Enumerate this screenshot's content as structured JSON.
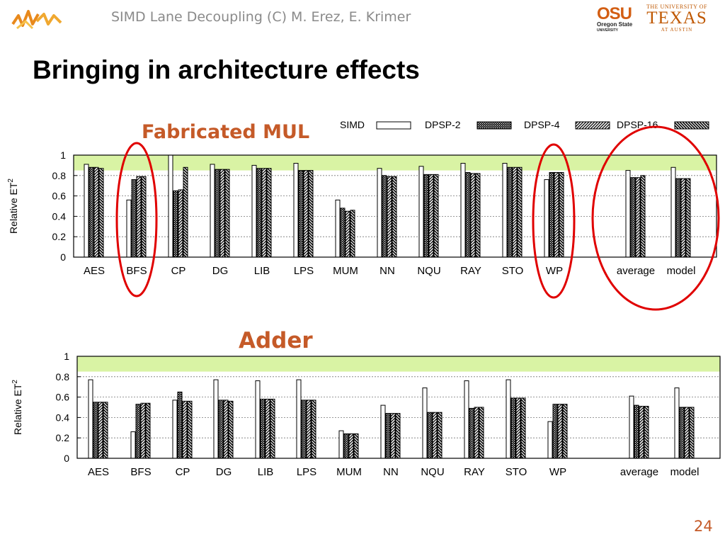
{
  "header": {
    "text": "SIMD Lane Decoupling (C) M. Erez, E. Krimer"
  },
  "logos": {
    "left_icon": "wave-lines-logo",
    "osu": {
      "big": "OSU",
      "small": "Oregon State",
      "tiny": "UNIVERSITY"
    },
    "ut": {
      "line1": "THE UNIVERSITY OF",
      "line2": "TEXAS",
      "line3": "AT AUSTIN"
    }
  },
  "title": "Bringing in architecture effects",
  "labels": {
    "top": "Fabricated MUL",
    "bottom": "Adder"
  },
  "page_number": "24",
  "colors": {
    "accent": "#c55a28",
    "highlight_band": "#d9f3a4",
    "circle": "#e00000"
  },
  "chart_data": [
    {
      "type": "bar",
      "ylabel": "Relative ET",
      "ylabel_sup": "2",
      "ylim": [
        0,
        1
      ],
      "yticks": [
        "0",
        "0.2",
        "0.4",
        "0.6",
        "0.8",
        "1"
      ],
      "highlight_band": [
        0.85,
        1.0
      ],
      "grid": true,
      "legend": "top",
      "categories": [
        "AES",
        "BFS",
        "CP",
        "DG",
        "LIB",
        "LPS",
        "MUM",
        "NN",
        "NQU",
        "RAY",
        "STO",
        "WP",
        "average",
        "model"
      ],
      "series": [
        {
          "name": "SIMD",
          "values": [
            0.91,
            0.56,
            1.0,
            0.91,
            0.9,
            0.92,
            0.56,
            0.87,
            0.89,
            0.92,
            0.92,
            0.76,
            0.85,
            0.88
          ]
        },
        {
          "name": "DPSP-2",
          "values": [
            0.88,
            0.76,
            0.65,
            0.86,
            0.87,
            0.85,
            0.48,
            0.8,
            0.81,
            0.83,
            0.88,
            0.83,
            0.78,
            0.77
          ]
        },
        {
          "name": "DPSP-4",
          "values": [
            0.88,
            0.79,
            0.66,
            0.86,
            0.87,
            0.85,
            0.45,
            0.79,
            0.81,
            0.82,
            0.88,
            0.83,
            0.78,
            0.77
          ]
        },
        {
          "name": "DPSP-16",
          "values": [
            0.87,
            0.79,
            0.88,
            0.86,
            0.87,
            0.85,
            0.46,
            0.79,
            0.81,
            0.82,
            0.88,
            0.83,
            0.8,
            0.77
          ]
        }
      ],
      "circled": [
        "BFS",
        "WP",
        "average",
        "model"
      ]
    },
    {
      "type": "bar",
      "ylabel": "Relative ET",
      "ylabel_sup": "2",
      "ylim": [
        0,
        1
      ],
      "yticks": [
        "0",
        "0.2",
        "0.4",
        "0.6",
        "0.8",
        "1"
      ],
      "highlight_band": [
        0.85,
        1.0
      ],
      "grid": true,
      "categories": [
        "AES",
        "BFS",
        "CP",
        "DG",
        "LIB",
        "LPS",
        "MUM",
        "NN",
        "NQU",
        "RAY",
        "STO",
        "WP",
        "average",
        "model"
      ],
      "series": [
        {
          "name": "SIMD",
          "values": [
            0.77,
            0.26,
            0.57,
            0.77,
            0.76,
            0.77,
            0.27,
            0.52,
            0.69,
            0.76,
            0.77,
            0.36,
            0.61,
            0.69
          ]
        },
        {
          "name": "DPSP-2",
          "values": [
            0.55,
            0.53,
            0.65,
            0.57,
            0.58,
            0.57,
            0.24,
            0.44,
            0.45,
            0.49,
            0.59,
            0.53,
            0.52,
            0.5
          ]
        },
        {
          "name": "DPSP-4",
          "values": [
            0.55,
            0.54,
            0.56,
            0.57,
            0.58,
            0.57,
            0.24,
            0.44,
            0.45,
            0.5,
            0.59,
            0.53,
            0.51,
            0.5
          ]
        },
        {
          "name": "DPSP-16",
          "values": [
            0.55,
            0.54,
            0.56,
            0.56,
            0.58,
            0.57,
            0.24,
            0.44,
            0.45,
            0.5,
            0.59,
            0.53,
            0.51,
            0.5
          ]
        }
      ]
    }
  ]
}
